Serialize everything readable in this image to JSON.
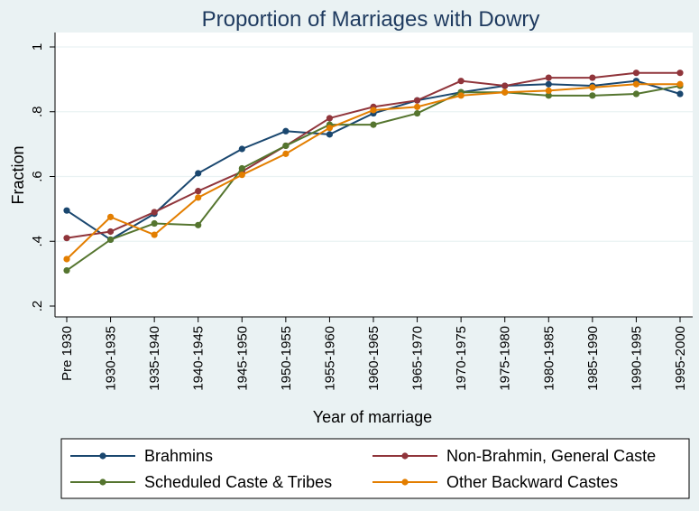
{
  "chart_data": {
    "type": "line",
    "title": "Proportion of Marriages with Dowry",
    "xlabel": "Year of marriage",
    "ylabel": "Fraction",
    "categories": [
      "Pre 1930",
      "1930-1935",
      "1935-1940",
      "1940-1945",
      "1945-1950",
      "1950-1955",
      "1955-1960",
      "1960-1965",
      "1965-1970",
      "1970-1975",
      "1975-1980",
      "1980-1985",
      "1985-1990",
      "1990-1995",
      "1995-2000"
    ],
    "yticks": [
      0.2,
      0.4,
      0.6,
      0.8,
      1.0
    ],
    "ytick_labels": [
      ".2",
      ".4",
      ".6",
      ".8",
      "1"
    ],
    "ylim": [
      0.2,
      1.0
    ],
    "grid": "horizontal",
    "legend_position": "bottom",
    "series": [
      {
        "name": "Brahmins",
        "color": "#1a476f",
        "values": [
          0.495,
          0.405,
          0.485,
          0.61,
          0.685,
          0.74,
          0.73,
          0.795,
          0.835,
          0.86,
          0.88,
          0.885,
          0.88,
          0.895,
          0.855
        ]
      },
      {
        "name": "Non-Brahmin, General Caste",
        "color": "#90353b",
        "values": [
          0.41,
          0.43,
          0.49,
          0.555,
          0.615,
          0.695,
          0.78,
          0.815,
          0.835,
          0.895,
          0.88,
          0.905,
          0.905,
          0.92,
          0.92
        ]
      },
      {
        "name": "Scheduled Caste & Tribes",
        "color": "#55752f",
        "values": [
          0.31,
          0.405,
          0.455,
          0.45,
          0.625,
          0.695,
          0.76,
          0.76,
          0.795,
          0.86,
          0.86,
          0.85,
          0.85,
          0.855,
          0.88
        ]
      },
      {
        "name": "Other Backward Castes",
        "color": "#e37e00",
        "values": [
          0.345,
          0.475,
          0.42,
          0.535,
          0.605,
          0.67,
          0.75,
          0.805,
          0.815,
          0.85,
          0.86,
          0.865,
          0.875,
          0.885,
          0.885
        ]
      }
    ]
  }
}
